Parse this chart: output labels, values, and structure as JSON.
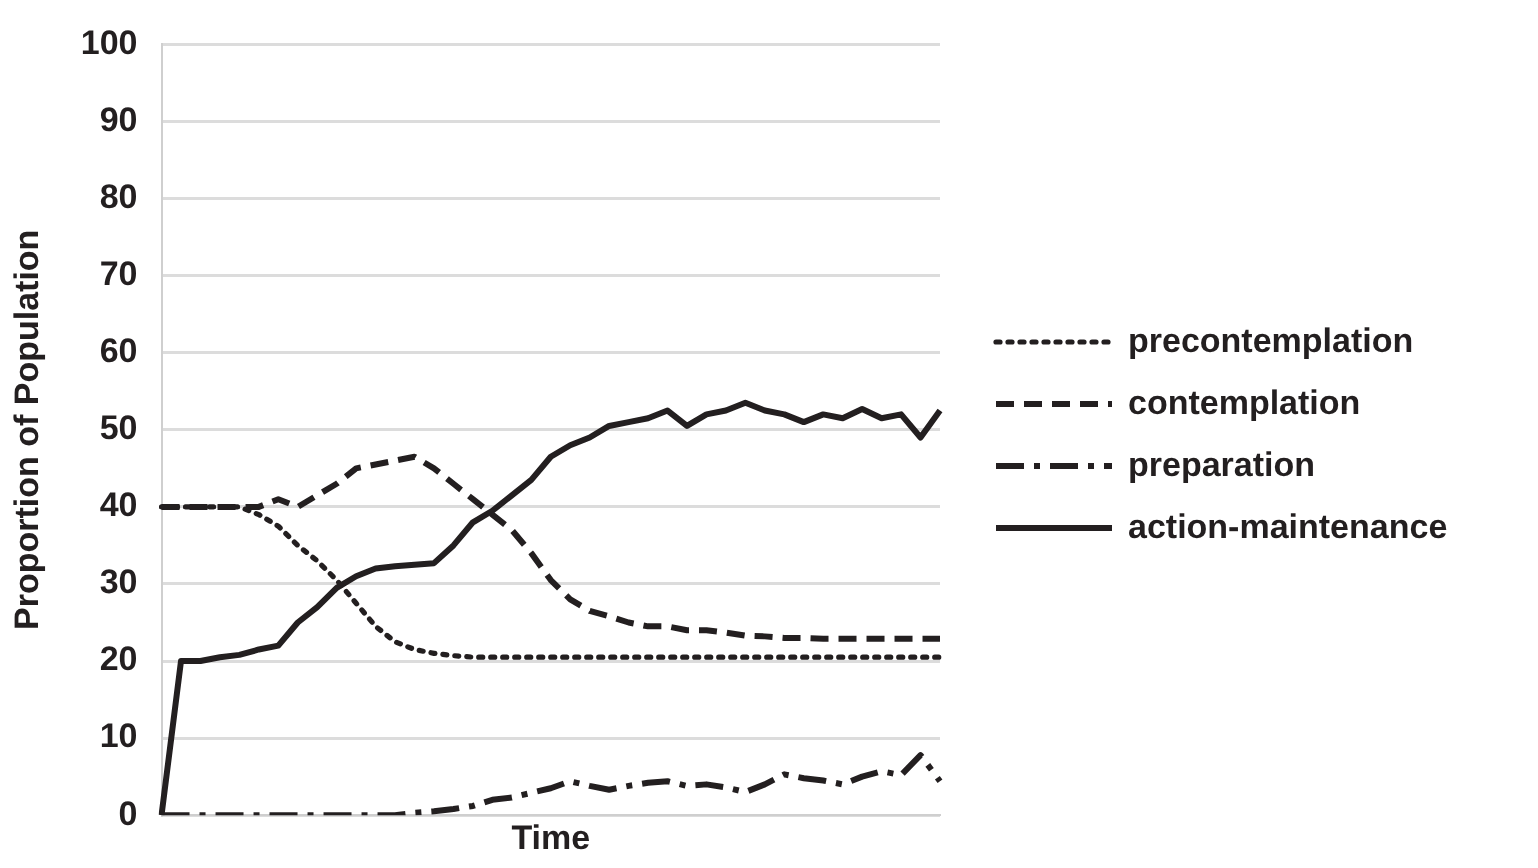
{
  "chart_data": {
    "type": "line",
    "xlabel": "Time",
    "ylabel": "Proportion of Population",
    "categories": [
      null,
      null,
      null,
      null,
      null,
      null,
      null,
      null,
      null,
      null,
      null,
      null,
      null,
      null,
      null,
      null,
      null,
      null,
      null,
      null,
      null,
      null,
      null,
      null,
      null,
      null,
      null,
      null,
      null,
      null,
      null,
      null,
      null,
      null,
      null,
      null,
      null,
      null,
      null,
      null,
      null
    ],
    "ylim": [
      0,
      100
    ],
    "yticks": [
      0,
      10,
      20,
      30,
      40,
      50,
      60,
      70,
      80,
      90,
      100
    ],
    "grid": "y",
    "tick_labels": "y",
    "legend": "right",
    "marker": "none",
    "series": [
      {
        "name": "precontemplation",
        "color": "#231f20",
        "line_style": "dotted",
        "values": [
          40,
          40,
          40,
          40,
          40,
          39,
          37.5,
          35,
          33,
          30.5,
          27.5,
          24.5,
          22.5,
          21.5,
          21,
          20.7,
          20.5,
          20.5,
          20.5,
          20.5,
          20.5,
          20.5,
          20.5,
          20.5,
          20.5,
          20.5,
          20.5,
          20.5,
          20.5,
          20.5,
          20.5,
          20.5,
          20.5,
          20.5,
          20.5,
          20.5,
          20.5,
          20.5,
          20.5,
          20.5,
          20.5
        ]
      },
      {
        "name": "contemplation",
        "color": "#231f20",
        "line_style": "dashed",
        "values": [
          40,
          40,
          40,
          40,
          40,
          40,
          41,
          40,
          41.5,
          43,
          45,
          45.5,
          46,
          46.5,
          45,
          43,
          41,
          39,
          37,
          34,
          30.5,
          28,
          26.5,
          25.8,
          25,
          24.5,
          24.5,
          24,
          24,
          23.7,
          23.3,
          23.2,
          23,
          23,
          22.9,
          22.9,
          22.9,
          22.9,
          22.9,
          22.9,
          22.9
        ]
      },
      {
        "name": "preparation",
        "color": "#231f20",
        "line_style": "dashdot",
        "values": [
          0,
          0,
          0,
          0,
          0,
          0,
          0,
          0,
          0,
          0,
          0,
          0,
          0,
          0.3,
          0.5,
          0.8,
          1.2,
          2,
          2.3,
          2.9,
          3.5,
          4.4,
          3.8,
          3.3,
          3.8,
          4.2,
          4.4,
          3.8,
          4,
          3.6,
          3,
          4,
          5.3,
          4.8,
          4.5,
          4,
          5,
          5.7,
          5.2,
          7.8,
          4.4
        ]
      },
      {
        "name": "action-maintenance",
        "color": "#231f20",
        "line_style": "solid",
        "values": [
          0,
          20,
          20,
          20.5,
          20.8,
          21.5,
          22,
          25,
          27,
          29.5,
          31,
          32,
          32.3,
          32.5,
          32.7,
          35,
          38,
          39.5,
          41.5,
          43.5,
          46.5,
          48,
          49,
          50.5,
          51,
          51.5,
          52.5,
          50.5,
          52,
          52.5,
          53.5,
          52.5,
          52,
          51,
          52,
          51.5,
          52.7,
          51.5,
          52,
          49,
          52.5
        ]
      }
    ]
  }
}
